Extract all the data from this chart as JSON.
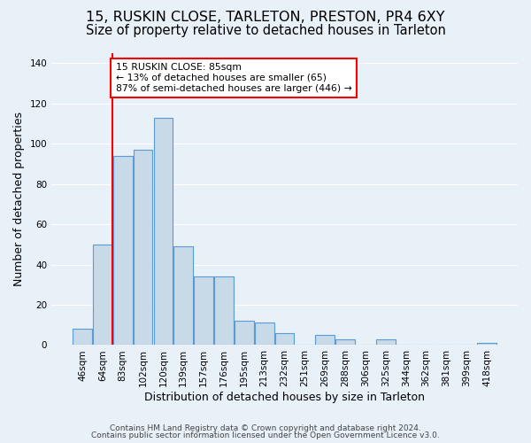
{
  "title_line1": "15, RUSKIN CLOSE, TARLETON, PRESTON, PR4 6XY",
  "title_line2": "Size of property relative to detached houses in Tarleton",
  "xlabel": "Distribution of detached houses by size in Tarleton",
  "ylabel": "Number of detached properties",
  "footer_line1": "Contains HM Land Registry data © Crown copyright and database right 2024.",
  "footer_line2": "Contains public sector information licensed under the Open Government Licence v3.0.",
  "bar_labels": [
    "46sqm",
    "64sqm",
    "83sqm",
    "102sqm",
    "120sqm",
    "139sqm",
    "157sqm",
    "176sqm",
    "195sqm",
    "213sqm",
    "232sqm",
    "251sqm",
    "269sqm",
    "288sqm",
    "306sqm",
    "325sqm",
    "344sqm",
    "362sqm",
    "381sqm",
    "399sqm",
    "418sqm"
  ],
  "bar_values": [
    8,
    50,
    94,
    97,
    113,
    49,
    34,
    34,
    12,
    11,
    6,
    0,
    5,
    3,
    0,
    3,
    0,
    0,
    0,
    0,
    1
  ],
  "bar_color": "#c8d9e8",
  "bar_edge_color": "#5b9bd5",
  "background_color": "#e8f0f8",
  "annotation_text": "15 RUSKIN CLOSE: 85sqm\n← 13% of detached houses are smaller (65)\n87% of semi-detached houses are larger (446) →",
  "annotation_box_color": "white",
  "annotation_box_edge_color": "red",
  "vline_x": 1.5,
  "vline_color": "red",
  "ylim": [
    0,
    145
  ],
  "yticks": [
    0,
    20,
    40,
    60,
    80,
    100,
    120,
    140
  ],
  "grid_color": "white",
  "title_fontsize": 11.5,
  "subtitle_fontsize": 10.5,
  "axis_label_fontsize": 9,
  "tick_fontsize": 7.5,
  "footer_fontsize": 6.5
}
